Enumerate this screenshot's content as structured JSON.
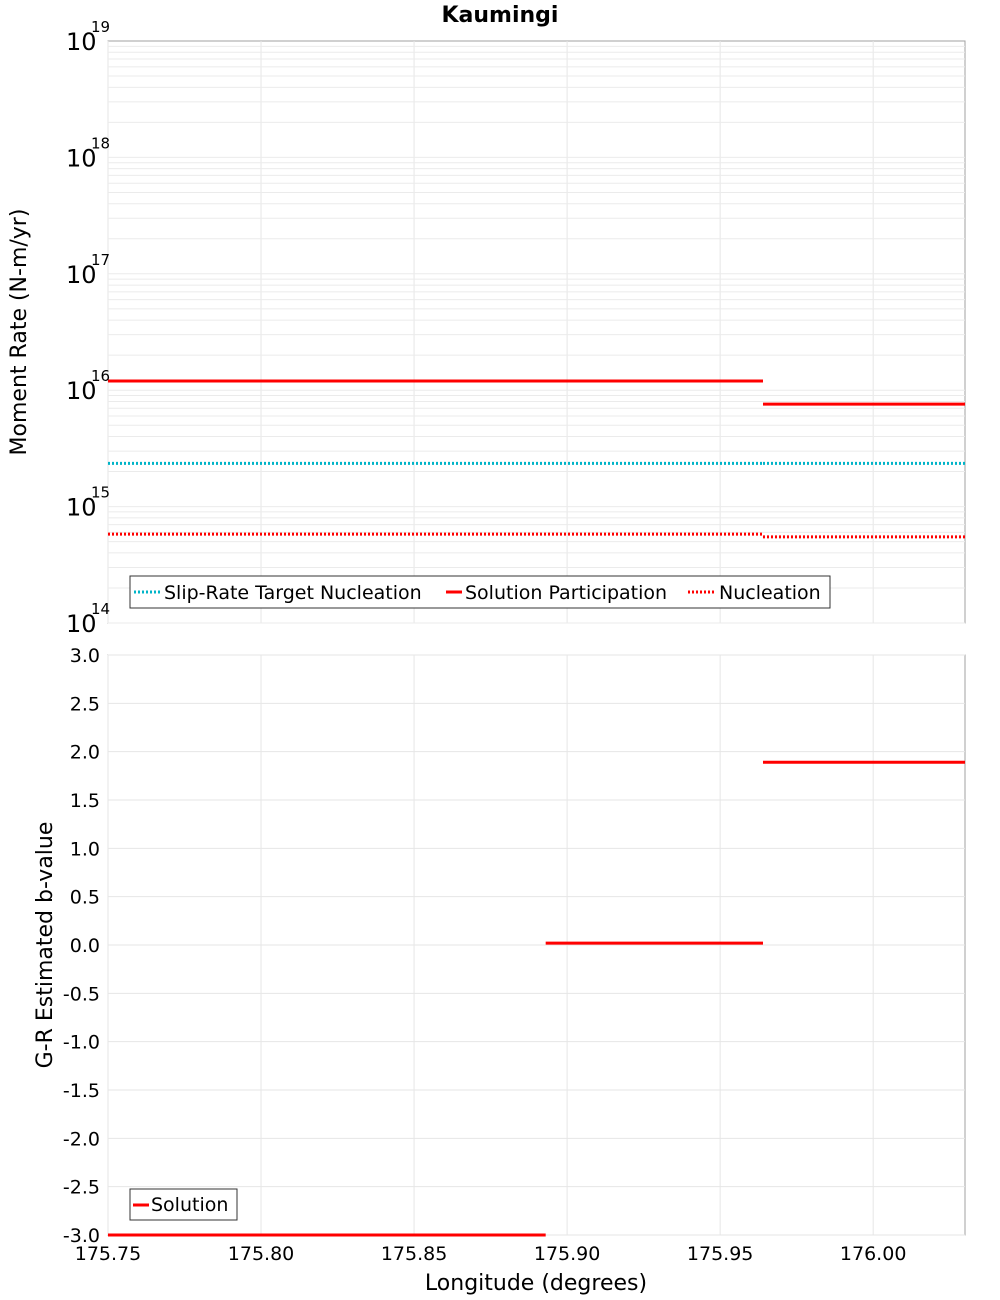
{
  "chart_data": [
    {
      "type": "line",
      "title": "Kaumingi",
      "ylabel": "Moment Rate (N-m/yr)",
      "xlabel": "",
      "yscale": "log",
      "ylim": [
        100000000000000.0,
        1e+19
      ],
      "xlim": [
        175.75,
        176.03
      ],
      "y_tick_labels": [
        {
          "value": 100000000000000.0,
          "base": "10",
          "exp": "14"
        },
        {
          "value": 1000000000000000.0,
          "base": "10",
          "exp": "15"
        },
        {
          "value": 1e+16,
          "base": "10",
          "exp": "16"
        },
        {
          "value": 1e+17,
          "base": "10",
          "exp": "17"
        },
        {
          "value": 1e+18,
          "base": "10",
          "exp": "18"
        },
        {
          "value": 1e+19,
          "base": "10",
          "exp": "19"
        }
      ],
      "legend_position": "bottom-left",
      "grid": true,
      "series": [
        {
          "name": "Slip-Rate Target Nucleation",
          "color": "#00b4c8",
          "style": "dotted",
          "segments": [
            {
              "x": [
                175.75,
                175.964
              ],
              "y": 2350000000000000.0
            },
            {
              "x": [
                175.964,
                176.03
              ],
              "y": 2350000000000000.0
            }
          ]
        },
        {
          "name": "Solution Participation",
          "color": "#ff0000",
          "style": "solid",
          "segments": [
            {
              "x": [
                175.75,
                175.964
              ],
              "y": 1.2e+16
            },
            {
              "x": [
                175.964,
                176.03
              ],
              "y": 7600000000000000.0
            }
          ]
        },
        {
          "name": "Nucleation",
          "color": "#ff0000",
          "style": "dotted",
          "segments": [
            {
              "x": [
                175.75,
                175.964
              ],
              "y": 580000000000000.0
            },
            {
              "x": [
                175.964,
                176.03
              ],
              "y": 550000000000000.0
            }
          ]
        }
      ]
    },
    {
      "type": "line",
      "title": "",
      "ylabel": "G-R Estimated b-value",
      "xlabel": "Longitude (degrees)",
      "ylim": [
        -3.0,
        3.0
      ],
      "xlim": [
        175.75,
        176.03
      ],
      "y_ticks": [
        "3.0",
        "2.5",
        "2.0",
        "1.5",
        "1.0",
        "0.5",
        "0.0",
        "-0.5",
        "-1.0",
        "-1.5",
        "-2.0",
        "-2.5",
        "-3.0"
      ],
      "x_ticks": [
        "175.75",
        "175.80",
        "175.85",
        "175.90",
        "175.95",
        "176.00"
      ],
      "legend_position": "bottom-left",
      "grid": true,
      "series": [
        {
          "name": "Solution",
          "color": "#ff0000",
          "style": "solid",
          "segments": [
            {
              "x": [
                175.75,
                175.893
              ],
              "y": -3.0
            },
            {
              "x": [
                175.893,
                175.964
              ],
              "y": 0.02
            },
            {
              "x": [
                175.964,
                176.03
              ],
              "y": 1.89
            }
          ]
        }
      ]
    }
  ]
}
